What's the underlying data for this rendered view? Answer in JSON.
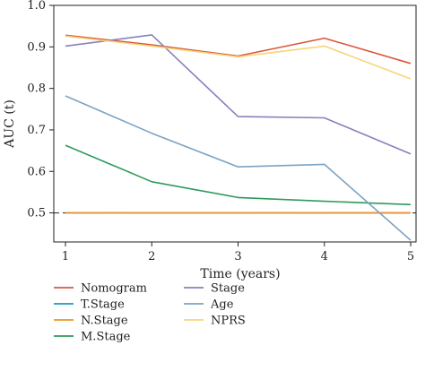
{
  "chart_data": {
    "type": "line",
    "xlabel": "Time (years)",
    "ylabel": "AUC (t)",
    "x": [
      1,
      2,
      3,
      4,
      5
    ],
    "xlim": [
      1,
      5
    ],
    "ylim": [
      0.43,
      1.0
    ],
    "yticks": [
      0.5,
      0.6,
      0.7,
      0.8,
      0.9,
      1.0
    ],
    "xticks": [
      1,
      2,
      3,
      4,
      5
    ],
    "ytick_labels": [
      "0.5",
      "0.6",
      "0.7",
      "0.8",
      "0.9",
      "1.0"
    ],
    "xtick_labels": [
      "1",
      "2",
      "3",
      "4",
      "5"
    ],
    "grid": false,
    "legend_position": "bottom",
    "reference_line": {
      "y": 0.5,
      "style": "dashed",
      "color": "#222222"
    },
    "series": [
      {
        "name": "Nomogram",
        "color": "#d9583b",
        "values": [
          0.928,
          0.905,
          0.878,
          0.921,
          0.86
        ]
      },
      {
        "name": "T.Stage",
        "color": "#2c8fc9",
        "values": [
          0.5,
          0.5,
          0.5,
          0.5,
          0.5
        ]
      },
      {
        "name": "N.Stage",
        "color": "#f0922a",
        "values": [
          0.5,
          0.5,
          0.5,
          0.5,
          0.5
        ]
      },
      {
        "name": "M.Stage",
        "color": "#2f9a5a",
        "values": [
          0.663,
          0.575,
          0.537,
          0.528,
          0.52
        ]
      },
      {
        "name": "Stage",
        "color": "#8a7fbd",
        "values": [
          0.902,
          0.929,
          0.732,
          0.729,
          0.642
        ]
      },
      {
        "name": "Age",
        "color": "#7ba3c4",
        "values": [
          0.782,
          0.692,
          0.611,
          0.617,
          0.434
        ]
      },
      {
        "name": "NPRS",
        "color": "#f6d47a",
        "values": [
          0.926,
          0.902,
          0.876,
          0.902,
          0.823
        ]
      }
    ]
  }
}
